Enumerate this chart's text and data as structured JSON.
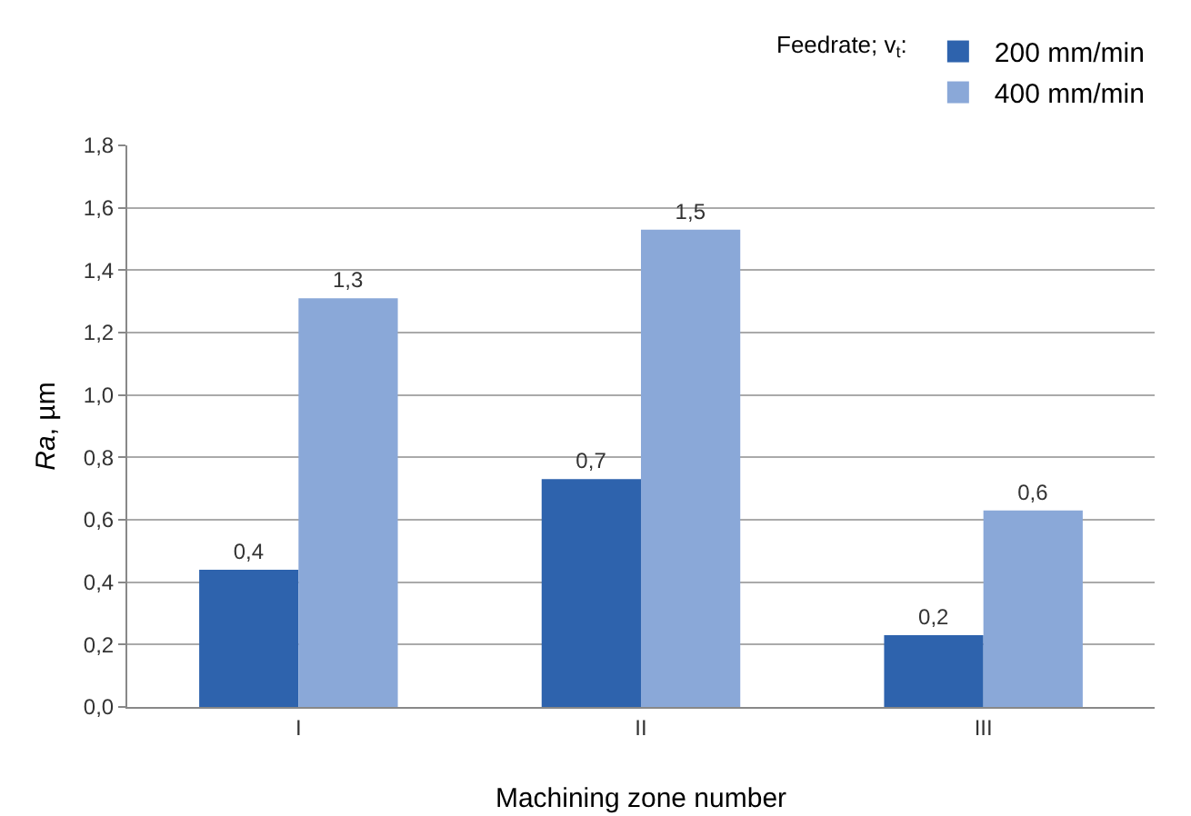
{
  "chart_data": {
    "type": "bar",
    "xlabel": "Machining zone number",
    "ylabel": "Ra, µm",
    "legend_title": "Feedrate; v$_{t}$:",
    "categories": [
      "I",
      "II",
      "III"
    ],
    "series": [
      {
        "name": "200 mm/min",
        "color": "#2e63ad",
        "values": [
          0.44,
          0.73,
          0.23
        ],
        "value_labels": [
          "0,4",
          "0,7",
          "0,2"
        ]
      },
      {
        "name": "400 mm/min",
        "color": "#8aa8d8",
        "values": [
          1.31,
          1.53,
          0.63
        ],
        "value_labels": [
          "1,3",
          "1,5",
          "0,6"
        ]
      }
    ],
    "ylim": [
      0,
      1.8
    ],
    "yticks": [
      {
        "value": 0,
        "label": "0,0"
      },
      {
        "value": 0.2,
        "label": "0,2"
      },
      {
        "value": 0.4,
        "label": "0,4"
      },
      {
        "value": 0.6,
        "label": "0,6"
      },
      {
        "value": 0.8,
        "label": "0,8"
      },
      {
        "value": 1,
        "label": "1,0"
      },
      {
        "value": 1.2,
        "label": "1,2"
      },
      {
        "value": 1.4,
        "label": "1,4"
      },
      {
        "value": 1.6,
        "label": "1,6"
      },
      {
        "value": 1.8,
        "label": "1,8"
      }
    ],
    "grid": "y",
    "legend": "top right"
  }
}
